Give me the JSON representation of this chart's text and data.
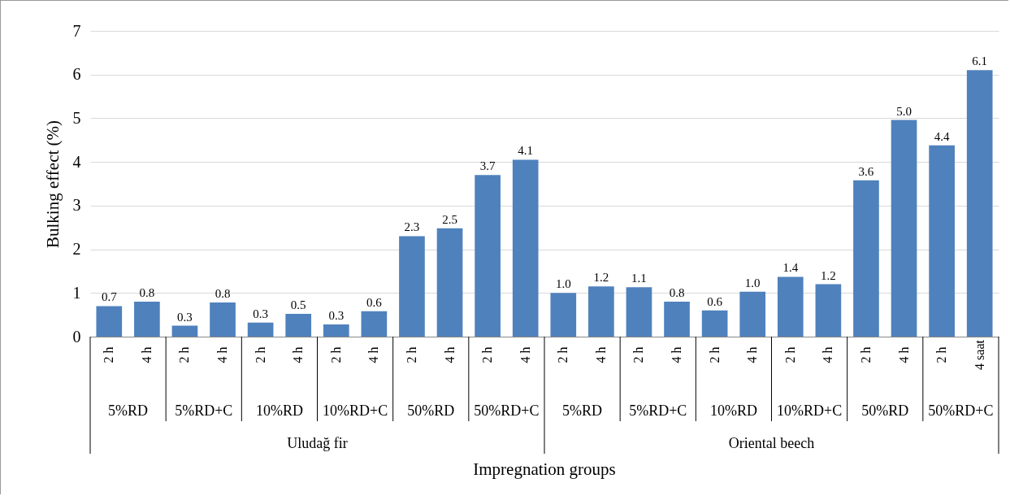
{
  "chart_data": {
    "type": "bar",
    "ylabel": "Bulking effect (%)",
    "categories": [
      "2 h",
      "4 h",
      "2 h",
      "4 h",
      "2 h",
      "4 h",
      "2 h",
      "4 h",
      "2 h",
      "4 h",
      "2 h",
      "4 h",
      "2 h",
      "4 h",
      "2 h",
      "4 h",
      "2 h",
      "4 h",
      "2 h",
      "4 h",
      "2 h",
      "4 h",
      "2 h",
      "4 saat"
    ],
    "values": [
      0.7,
      0.8,
      0.25,
      0.78,
      0.32,
      0.52,
      0.28,
      0.58,
      2.3,
      2.48,
      3.7,
      4.05,
      1.0,
      1.15,
      1.13,
      0.8,
      0.6,
      1.03,
      1.37,
      1.2,
      3.58,
      4.96,
      4.38,
      6.1
    ],
    "value_labels": [
      "0.7",
      "0.8",
      "0.3",
      "0.8",
      "0.3",
      "0.5",
      "0.3",
      "0.6",
      "2.3",
      "2.5",
      "3.7",
      "4.1",
      "1.0",
      "1.2",
      "1.1",
      "0.8",
      "0.6",
      "1.0",
      "1.4",
      "1.2",
      "3.6",
      "5.0",
      "4.4",
      "6.1"
    ],
    "color": "#4f81bd",
    "ylim": [
      0,
      7
    ],
    "yticks": [
      0,
      1,
      2,
      3,
      4,
      5,
      6,
      7
    ],
    "grid": "y",
    "annotations": [
      "5%RD",
      "5%RD+C",
      "10%RD",
      "10%RD+C",
      "50%RD",
      "50%RD+C",
      "5%RD",
      "5%RD+C",
      "10%RD",
      "10%RD+C",
      "50%RD",
      "50%RD+C",
      "Uludağ fir",
      "Oriental beech",
      "Impregnation groups"
    ]
  }
}
